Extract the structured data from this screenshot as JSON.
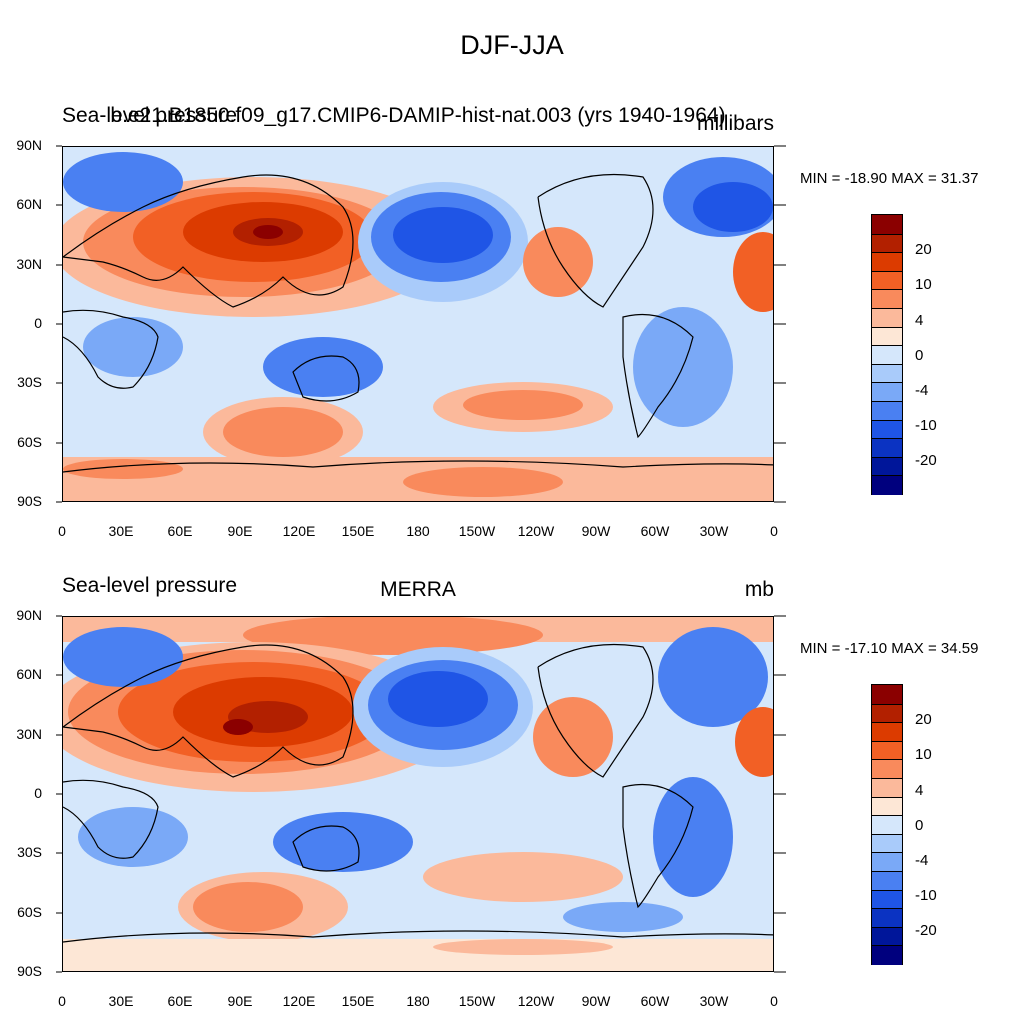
{
  "title": "DJF-JJA",
  "panels": [
    {
      "left_title": "Sea-level pressure",
      "center_title": "b.e21.B1850.f09_g17.CMIP6-DAMIP-hist-nat.003 (yrs 1940-1964)",
      "right_title": "millibars",
      "stats": "MIN = -18.90 MAX =  31.37"
    },
    {
      "left_title": "Sea-level pressure",
      "center_title": "MERRA",
      "right_title": "mb",
      "stats": "MIN = -17.10 MAX =  34.59"
    }
  ],
  "lat_ticks": [
    "90N",
    "60N",
    "30N",
    "0",
    "30S",
    "60S",
    "90S"
  ],
  "lon_ticks": [
    "0",
    "30E",
    "60E",
    "90E",
    "120E",
    "150E",
    "180",
    "150W",
    "120W",
    "90W",
    "60W",
    "30W",
    "0"
  ],
  "colorbar": {
    "colors": [
      "#8b0000",
      "#b22000",
      "#dc3b00",
      "#f26025",
      "#f98a5c",
      "#fbb99b",
      "#fde7d6",
      "#d5e7fb",
      "#a9cbfa",
      "#7aa9f7",
      "#4a80f2",
      "#1f55e6",
      "#0b33c2",
      "#00169a",
      "#00007e"
    ],
    "labels": [
      "20",
      "10",
      "4",
      "0",
      "-4",
      "-10",
      "-20"
    ]
  },
  "chart_data": {
    "type": "contour-map",
    "field": "Sea-level pressure difference DJF minus JJA",
    "units": "mb",
    "levels": [
      -30,
      -20,
      -15,
      -10,
      -7,
      -4,
      -2,
      0,
      2,
      4,
      7,
      10,
      15,
      20,
      30
    ],
    "lat_range": [
      -90,
      90
    ],
    "lon_range": [
      0,
      360
    ],
    "maps": [
      {
        "name": "b.e21.B1850.f09_g17.CMIP6-DAMIP-hist-nat.003 (yrs 1940-1964)",
        "min": -18.9,
        "max": 31.37
      },
      {
        "name": "MERRA",
        "min": -17.1,
        "max": 34.59
      }
    ]
  }
}
